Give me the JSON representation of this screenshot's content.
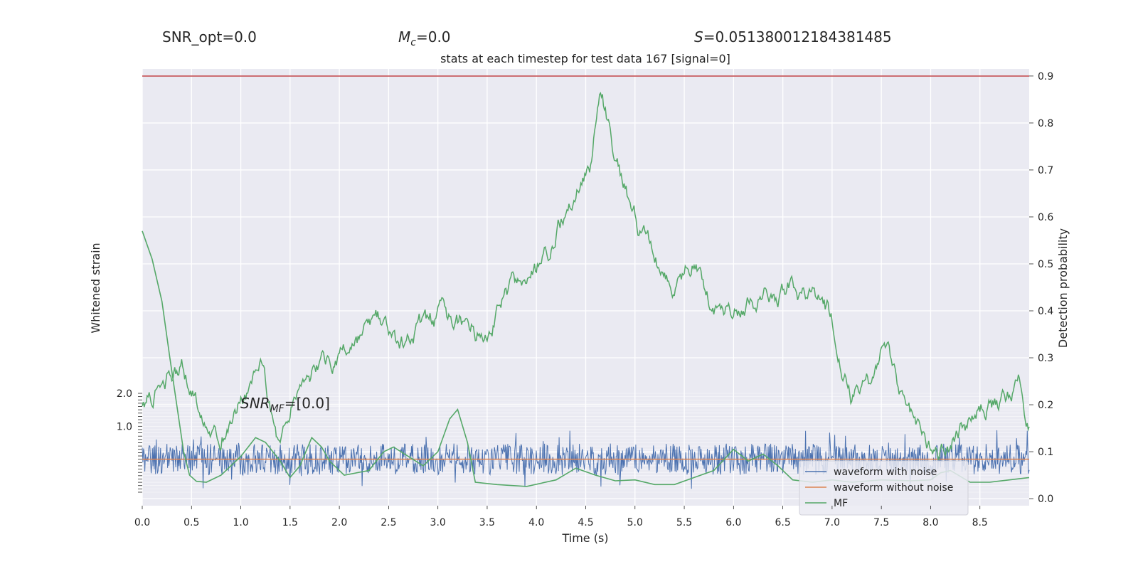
{
  "header": {
    "snr_opt": "SNR_opt=0.0",
    "mc_label": "M",
    "mc_sub": "c",
    "mc_value": "=0.0",
    "s_label": "S",
    "s_value": "=0.051380012184381485",
    "snr_mf_label": "SNR",
    "snr_mf_sub": "MF",
    "snr_mf_value": "=[0.0]"
  },
  "chart_data": {
    "type": "line",
    "title": "stats at each timestep for test data 167 [signal=0]",
    "xlabel": "Time (s)",
    "ylabel_left": "Whitened strain",
    "ylabel_right": "Detection probability",
    "xlim": [
      0.0,
      9.0
    ],
    "ylim_right": [
      -0.015,
      0.915
    ],
    "x_ticks": [
      0.0,
      0.5,
      1.0,
      1.5,
      2.0,
      2.5,
      3.0,
      3.5,
      4.0,
      4.5,
      5.0,
      5.5,
      6.0,
      6.5,
      7.0,
      7.5,
      8.0,
      8.5
    ],
    "x_tick_labels": [
      "0.0",
      "0.5",
      "1.0",
      "1.5",
      "2.0",
      "2.5",
      "3.0",
      "3.5",
      "4.0",
      "4.5",
      "5.0",
      "5.5",
      "6.0",
      "6.5",
      "7.0",
      "7.5",
      "8.0",
      "8.5"
    ],
    "y_right_ticks": [
      0.0,
      0.1,
      0.2,
      0.3,
      0.4,
      0.5,
      0.6,
      0.7,
      0.8,
      0.9
    ],
    "y_right_tick_labels": [
      "0.0",
      "0.1",
      "0.2",
      "0.3",
      "0.4",
      "0.5",
      "0.6",
      "0.7",
      "0.8",
      "0.9"
    ],
    "strain_ylim": [
      -1.0,
      2.0
    ],
    "strain_visible_tick_labels": [
      "2.0",
      "1.0"
    ],
    "threshold": 0.9,
    "detection_probability": {
      "color": "#55a868",
      "t": [
        0.0,
        0.2,
        0.4,
        0.6,
        0.8,
        1.0,
        1.2,
        1.4,
        1.6,
        1.8,
        2.0,
        2.2,
        2.4,
        2.6,
        2.8,
        3.0,
        3.2,
        3.4,
        3.6,
        3.8,
        4.0,
        4.2,
        4.4,
        4.55,
        4.65,
        4.8,
        5.0,
        5.2,
        5.4,
        5.6,
        5.8,
        6.0,
        6.2,
        6.4,
        6.6,
        6.8,
        7.0,
        7.2,
        7.4,
        7.5,
        7.7,
        7.9,
        8.1,
        8.3,
        8.5,
        8.7,
        8.9,
        9.0
      ],
      "p": [
        0.2,
        0.24,
        0.28,
        0.18,
        0.15,
        0.22,
        0.27,
        0.12,
        0.26,
        0.28,
        0.3,
        0.33,
        0.37,
        0.31,
        0.36,
        0.38,
        0.37,
        0.35,
        0.4,
        0.45,
        0.48,
        0.56,
        0.65,
        0.72,
        0.88,
        0.72,
        0.6,
        0.52,
        0.44,
        0.5,
        0.41,
        0.4,
        0.42,
        0.44,
        0.45,
        0.42,
        0.38,
        0.2,
        0.24,
        0.33,
        0.22,
        0.14,
        0.1,
        0.14,
        0.18,
        0.2,
        0.25,
        0.15
      ]
    },
    "series": [
      {
        "name": "waveform with noise",
        "color": "#4c72b0"
      },
      {
        "name": "waveform without noise",
        "color": "#dd8452"
      },
      {
        "name": "MF",
        "color": "#55a868",
        "t": [
          0.0,
          0.1,
          0.2,
          0.28,
          0.35,
          0.42,
          0.48,
          0.55,
          0.65,
          0.8,
          1.0,
          1.15,
          1.25,
          1.4,
          1.5,
          1.6,
          1.72,
          1.82,
          1.9,
          2.05,
          2.3,
          2.45,
          2.55,
          2.7,
          2.85,
          3.0,
          3.12,
          3.2,
          3.3,
          3.38,
          3.6,
          3.9,
          4.2,
          4.4,
          4.6,
          4.8,
          5.0,
          5.2,
          5.4,
          5.6,
          5.8,
          6.0,
          6.15,
          6.3,
          6.45,
          6.6,
          6.8,
          7.0,
          7.2,
          7.5,
          7.8,
          8.0,
          8.1,
          8.2,
          8.4,
          8.6,
          8.8,
          9.0
        ],
        "p": [
          0.57,
          0.51,
          0.42,
          0.3,
          0.2,
          0.1,
          0.05,
          0.037,
          0.035,
          0.05,
          0.09,
          0.13,
          0.12,
          0.08,
          0.045,
          0.07,
          0.13,
          0.11,
          0.08,
          0.05,
          0.06,
          0.1,
          0.11,
          0.09,
          0.07,
          0.1,
          0.17,
          0.19,
          0.12,
          0.035,
          0.03,
          0.026,
          0.04,
          0.065,
          0.05,
          0.038,
          0.04,
          0.03,
          0.03,
          0.045,
          0.06,
          0.105,
          0.08,
          0.095,
          0.07,
          0.04,
          0.035,
          0.04,
          0.035,
          0.04,
          0.038,
          0.04,
          0.055,
          0.06,
          0.035,
          0.035,
          0.04,
          0.045
        ]
      }
    ],
    "legend_position": "lower-right",
    "grid": true
  }
}
